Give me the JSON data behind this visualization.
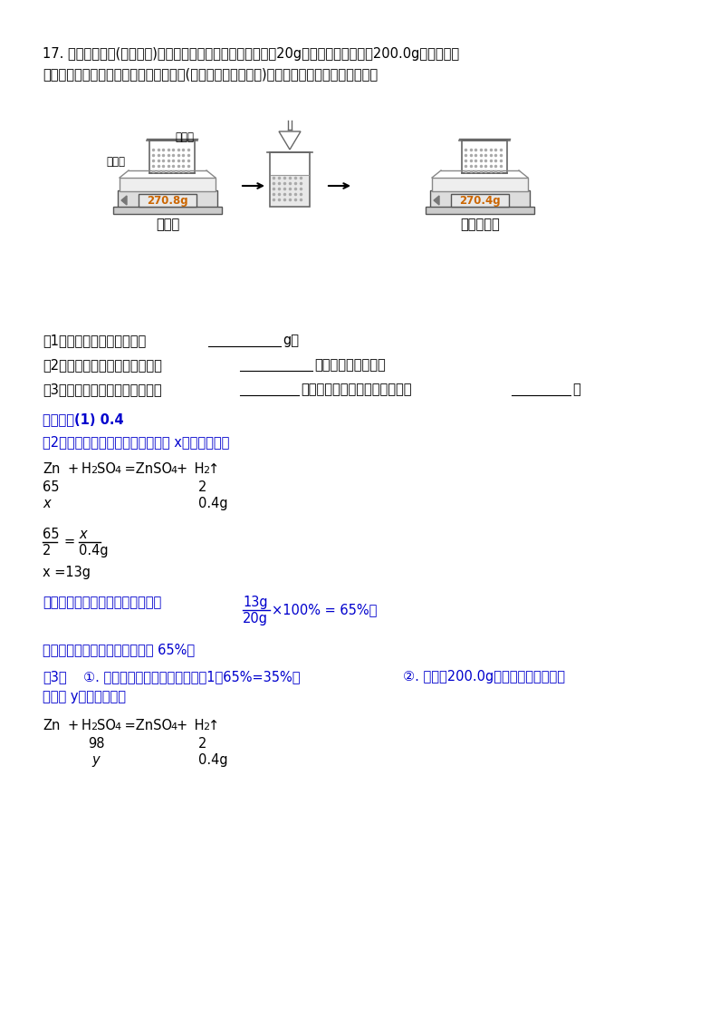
{
  "bg_color": "#ffffff",
  "text_color_black": "#000000",
  "text_color_blue": "#0000CD",
  "title_text": "17. 为了测定黄铜(铜锌合金)样品中铜和锌的含量，小明称取了20g黄铜样品，投入装有200.0g稀硫酸的烧",
  "title_text2": "杯中恰好完全反应。在实验过程中对烧杯(包括溶液和残余固体)进行称量，如图所示。请计算：",
  "q1": "（1）反应生成氢气的质量为",
  "q1_end": "g。",
  "q2": "（2）求黄铜样品中锌的质量分数",
  "q2_end": "。（写出计算过程）",
  "q3": "（3）黄铜样品中铜的质量分数为",
  "q3_mid": "，所用稀硫酸的溶质质量分数为",
  "q3_end": "。",
  "ans_header": "【答案】(1) 0.4",
  "ans2_intro": "（2）解：设黄铜样品中锌的质量为 x，依题意有：",
  "reaction1_zn": "Zn",
  "reaction1_plus": "  +",
  "reaction1_h2so4": "  H₂SO₄",
  "reaction1_eq": "  =ZnSO₄+",
  "reaction1_h2": "  H₂↑",
  "num_65": "65",
  "num_2_1": "2",
  "num_x": "x",
  "num_0.4g_1": "0.4g",
  "fraction1_num": "65",
  "fraction1_den": "2",
  "fraction1_eq": "=",
  "fraction2_num": "x",
  "fraction2_den": "0.4g",
  "x_result": "x =13g",
  "ans2_percent": "所以黄铜样品中锥的质量分数为：",
  "ans2_frac_num": "13g",
  "ans2_frac_den": "20g",
  "ans2_percent_end": "×100% = 65%。",
  "ans2_final": "答：黄铜样品中锌的质量分数为 65%。",
  "ans3_intro": "（3）　　①. 黄铜样品中铜的质量分数为：1−65%=35%。　　②. 解：设200.0g稀硫酸溶液中硫酸的",
  "ans3_intro2": "质量为 y，依题意有：",
  "reaction2_zn": "Zn",
  "reaction2_plus": "  +",
  "reaction2_h2so4": "  H₂SO₄",
  "reaction2_eq": "  =ZnSO₄+",
  "reaction2_h2": "  H₂↑",
  "num_98": "98",
  "num_2_2": "2",
  "num_y": "y",
  "num_0.4g_2": "0.4g",
  "scale1_reading": "270.8g",
  "scale2_reading": "270.4g",
  "label_before": "反应前",
  "label_after": "充分反应后",
  "label_acid": "稀硫酸",
  "label_sample": "铜样品"
}
